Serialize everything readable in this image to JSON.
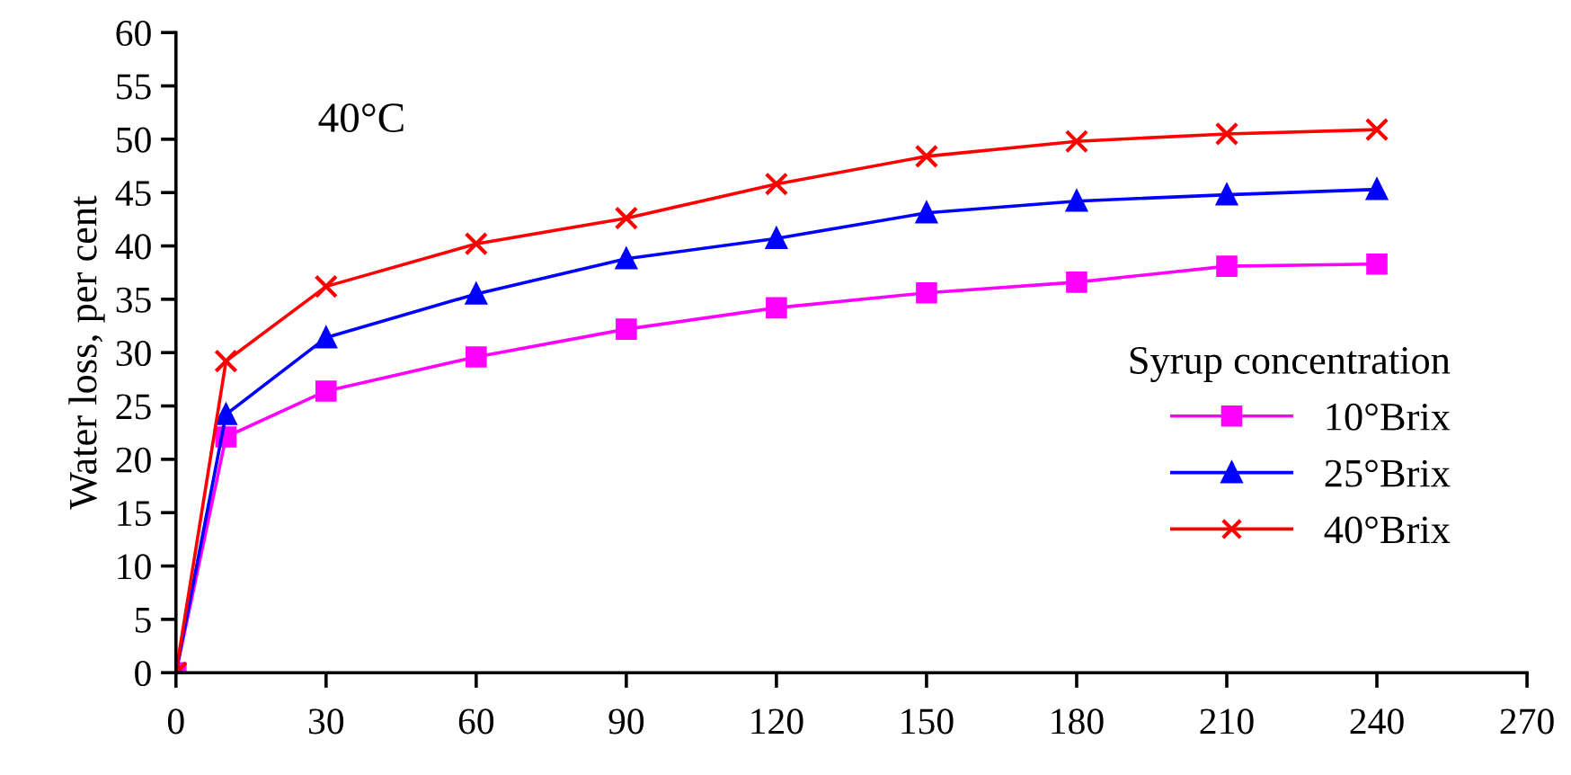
{
  "chart_data": {
    "type": "line",
    "x": [
      0,
      10,
      30,
      60,
      90,
      120,
      150,
      180,
      210,
      240
    ],
    "series": [
      {
        "name": "10°Brix",
        "color": "#ff00ff",
        "marker": "square",
        "values": [
          0,
          22.1,
          26.4,
          29.6,
          32.2,
          34.2,
          35.6,
          36.6,
          38.1,
          38.3
        ]
      },
      {
        "name": "25°Brix",
        "color": "#0000ff",
        "marker": "triangle",
        "values": [
          0,
          24.2,
          31.4,
          35.5,
          38.8,
          40.7,
          43.1,
          44.2,
          44.8,
          45.3
        ]
      },
      {
        "name": "40°Brix",
        "color": "#ff0000",
        "marker": "cross",
        "values": [
          0,
          29.2,
          36.2,
          40.2,
          42.6,
          45.8,
          48.4,
          49.8,
          50.5,
          50.9
        ]
      }
    ],
    "ylabel": "Water loss, per cent",
    "legend_title": "Syrup concentration",
    "legend": "right",
    "annotations": [
      "40°C"
    ],
    "xlim": [
      0,
      270
    ],
    "xticks": [
      0,
      30,
      60,
      90,
      120,
      150,
      180,
      210,
      240,
      270
    ],
    "ylim": [
      0,
      60
    ],
    "yticks": [
      0,
      5,
      10,
      15,
      20,
      25,
      30,
      35,
      40,
      45,
      50,
      55,
      60
    ],
    "grid": false,
    "line_style": "solid"
  }
}
